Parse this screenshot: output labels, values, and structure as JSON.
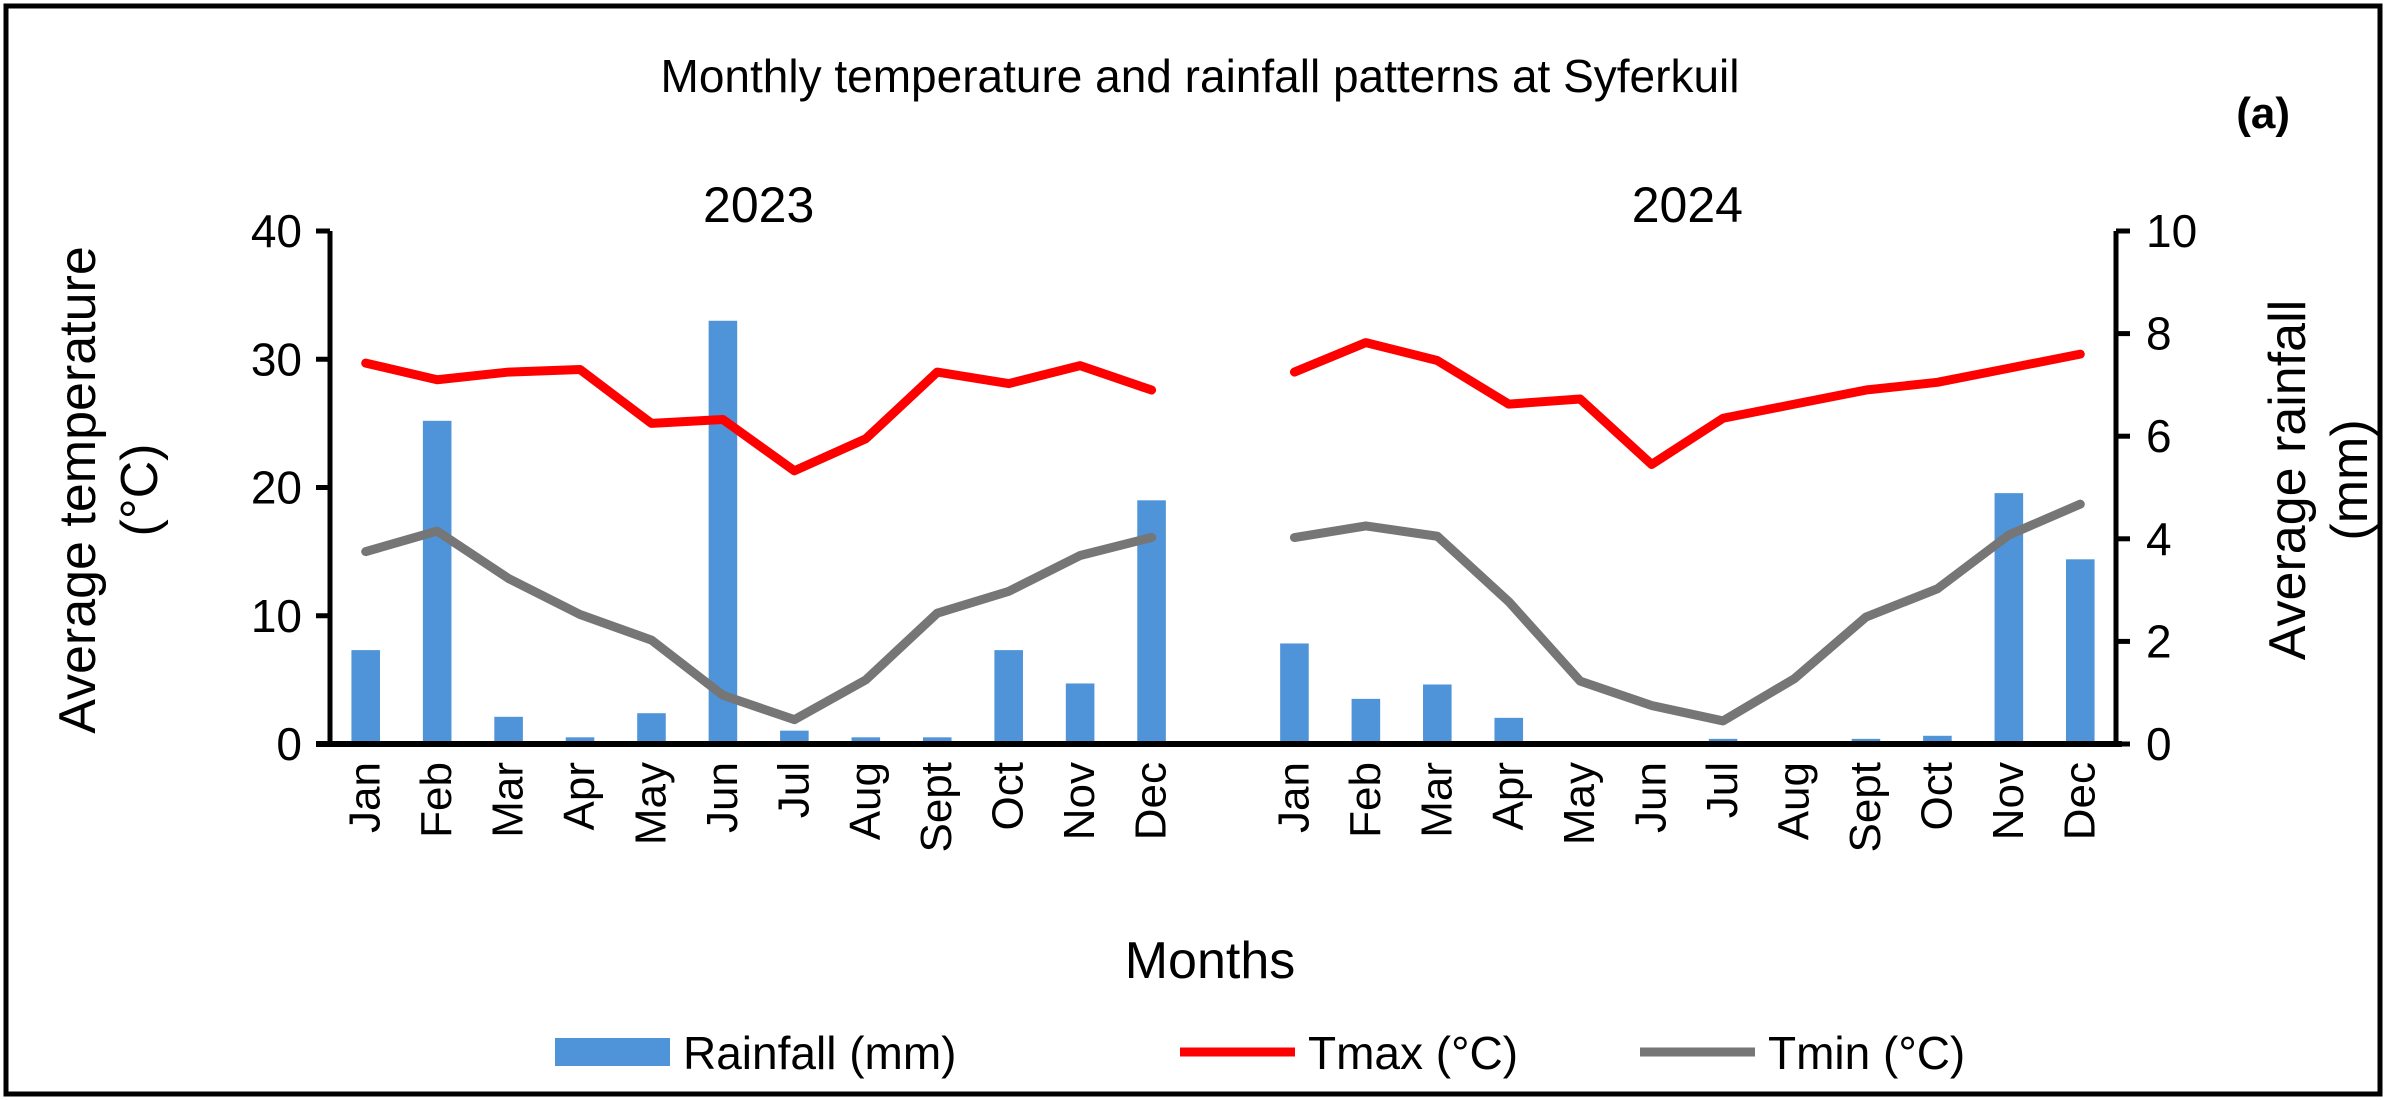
{
  "chart_data": {
    "type": "bar+line",
    "title": "Monthly temperature and rainfall patterns at Syferkuil",
    "panel_label": "(a)",
    "groups": [
      "2023",
      "2024"
    ],
    "categories": [
      "Jan",
      "Feb",
      "Mar",
      "Apr",
      "May",
      "Jun",
      "Jul",
      "Aug",
      "Sept",
      "Oct",
      "Nov",
      "Dec"
    ],
    "xlabel": "Months",
    "ylabel": "Average temperature (°C)",
    "ylabel_lines": [
      "Average temperature",
      "(°C)"
    ],
    "y2label": "Average rainfall (mm)",
    "y2label_lines": [
      "Average rainfall",
      "(mm)"
    ],
    "ylim": [
      0,
      40
    ],
    "y2lim": [
      0,
      10
    ],
    "yticks": [
      "0",
      "10",
      "20",
      "30",
      "40"
    ],
    "y2ticks": [
      "0",
      "2",
      "4",
      "6",
      "8",
      "10"
    ],
    "grid": false,
    "legend_position": "bottom",
    "series": [
      {
        "name": "Rainfall (mm)",
        "type": "bar",
        "axis": "right",
        "color": "#4f93d8",
        "values": [
          [
            1.83,
            6.3,
            0.53,
            0.13,
            0.6,
            8.25,
            0.26,
            0.13,
            0.13,
            1.83,
            1.18,
            4.75
          ],
          [
            1.96,
            0.88,
            1.16,
            0.51,
            0,
            0,
            0.1,
            0,
            0.1,
            0.16,
            4.89,
            3.6
          ]
        ]
      },
      {
        "name": "Tmax (°C)",
        "type": "line",
        "axis": "left",
        "color": "#ff0000",
        "values": [
          [
            29.7,
            28.4,
            29.0,
            29.2,
            25.0,
            25.3,
            21.3,
            23.8,
            29.0,
            28.1,
            29.5,
            27.6
          ],
          [
            29.0,
            31.3,
            29.9,
            26.5,
            26.9,
            21.8,
            25.4,
            26.5,
            27.6,
            28.2,
            29.3,
            30.4
          ]
        ]
      },
      {
        "name": "Tmin (°C)",
        "type": "line",
        "axis": "left",
        "color": "#767676",
        "values": [
          [
            15.0,
            16.6,
            12.9,
            10.1,
            8.1,
            3.8,
            1.9,
            5.0,
            10.2,
            11.9,
            14.7,
            16.1
          ],
          [
            16.1,
            17.0,
            16.2,
            11.1,
            4.9,
            3.0,
            1.8,
            5.1,
            9.9,
            12.1,
            16.3,
            18.7
          ]
        ]
      }
    ]
  }
}
